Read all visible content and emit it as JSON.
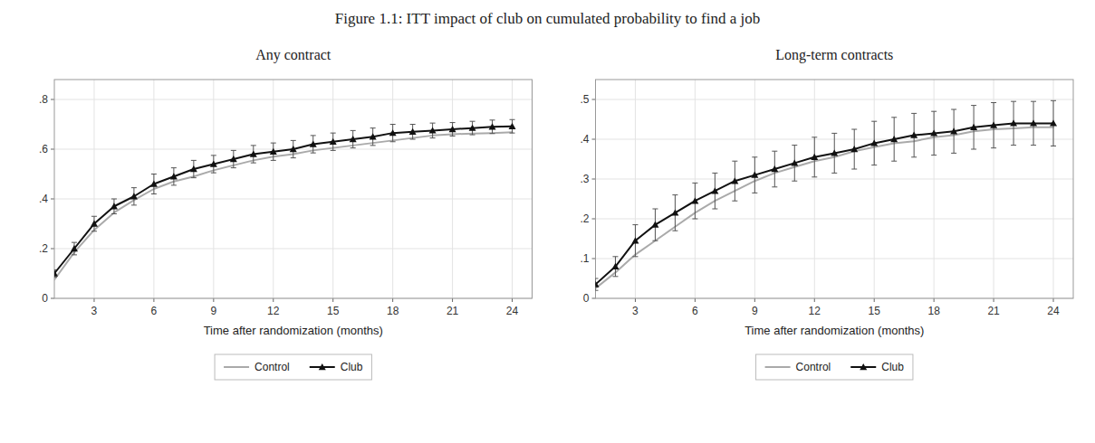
{
  "title": "Figure 1.1: ITT impact of club on cumulated probability to find a job",
  "chart_data": [
    {
      "type": "line",
      "title": "Any contract",
      "x_label": "Time after randomization (months)",
      "x": [
        1,
        2,
        3,
        4,
        5,
        6,
        7,
        8,
        9,
        10,
        11,
        12,
        13,
        14,
        15,
        16,
        17,
        18,
        19,
        20,
        21,
        22,
        23,
        24
      ],
      "series": [
        {
          "name": "Control",
          "color": "#aaaaaa",
          "values": [
            0.075,
            0.185,
            0.275,
            0.345,
            0.395,
            0.44,
            0.47,
            0.49,
            0.515,
            0.535,
            0.555,
            0.57,
            0.58,
            0.595,
            0.605,
            0.615,
            0.625,
            0.635,
            0.645,
            0.655,
            0.66,
            0.663,
            0.665,
            0.668
          ]
        },
        {
          "name": "Club",
          "color": "#111111",
          "marker": "triangle",
          "values": [
            0.1,
            0.2,
            0.3,
            0.37,
            0.41,
            0.46,
            0.49,
            0.52,
            0.54,
            0.56,
            0.58,
            0.59,
            0.6,
            0.62,
            0.63,
            0.64,
            0.65,
            0.665,
            0.67,
            0.675,
            0.68,
            0.685,
            0.69,
            0.692
          ],
          "ci_low": [
            0.085,
            0.175,
            0.27,
            0.34,
            0.375,
            0.42,
            0.455,
            0.485,
            0.505,
            0.525,
            0.545,
            0.555,
            0.565,
            0.585,
            0.595,
            0.605,
            0.615,
            0.63,
            0.64,
            0.645,
            0.653,
            0.658,
            0.663,
            0.665
          ],
          "ci_high": [
            0.115,
            0.225,
            0.33,
            0.4,
            0.445,
            0.5,
            0.525,
            0.555,
            0.575,
            0.595,
            0.615,
            0.625,
            0.635,
            0.655,
            0.665,
            0.675,
            0.685,
            0.7,
            0.7,
            0.705,
            0.707,
            0.712,
            0.717,
            0.719
          ]
        }
      ],
      "xlim": [
        1,
        25
      ],
      "xticks": [
        3,
        6,
        9,
        12,
        15,
        18,
        21,
        24
      ],
      "ylim": [
        0,
        0.88
      ],
      "yticks": [
        0,
        {
          "value": 0.2,
          "label": ".2"
        },
        {
          "value": 0.4,
          "label": ".4"
        },
        {
          "value": 0.6,
          "label": ".6"
        },
        {
          "value": 0.8,
          "label": ".8"
        }
      ],
      "grid": true,
      "legend": "bottom"
    },
    {
      "type": "line",
      "title": "Long-term contracts",
      "x_label": "Time after randomization (months)",
      "x": [
        1,
        2,
        3,
        4,
        5,
        6,
        7,
        8,
        9,
        10,
        11,
        12,
        13,
        14,
        15,
        16,
        17,
        18,
        19,
        20,
        21,
        22,
        23,
        24
      ],
      "series": [
        {
          "name": "Control",
          "color": "#aaaaaa",
          "values": [
            0.025,
            0.065,
            0.11,
            0.145,
            0.18,
            0.215,
            0.245,
            0.27,
            0.295,
            0.315,
            0.33,
            0.345,
            0.355,
            0.37,
            0.38,
            0.39,
            0.395,
            0.405,
            0.41,
            0.42,
            0.425,
            0.427,
            0.43,
            0.43
          ]
        },
        {
          "name": "Club",
          "color": "#111111",
          "marker": "triangle",
          "values": [
            0.035,
            0.08,
            0.145,
            0.185,
            0.215,
            0.245,
            0.27,
            0.295,
            0.31,
            0.325,
            0.34,
            0.355,
            0.365,
            0.375,
            0.39,
            0.4,
            0.41,
            0.415,
            0.42,
            0.43,
            0.435,
            0.44,
            0.44,
            0.44
          ],
          "ci_low": [
            0.02,
            0.055,
            0.105,
            0.145,
            0.17,
            0.2,
            0.225,
            0.245,
            0.265,
            0.28,
            0.295,
            0.305,
            0.315,
            0.325,
            0.335,
            0.345,
            0.355,
            0.36,
            0.365,
            0.375,
            0.378,
            0.385,
            0.385,
            0.383
          ],
          "ci_high": [
            0.05,
            0.105,
            0.185,
            0.225,
            0.26,
            0.29,
            0.315,
            0.345,
            0.355,
            0.37,
            0.385,
            0.405,
            0.415,
            0.425,
            0.445,
            0.455,
            0.465,
            0.47,
            0.475,
            0.485,
            0.492,
            0.495,
            0.495,
            0.497
          ]
        }
      ],
      "xlim": [
        1,
        25
      ],
      "xticks": [
        3,
        6,
        9,
        12,
        15,
        18,
        21,
        24
      ],
      "ylim": [
        0,
        0.55
      ],
      "yticks": [
        0,
        {
          "value": 0.1,
          "label": ".1"
        },
        {
          "value": 0.2,
          "label": ".2"
        },
        {
          "value": 0.3,
          "label": ".3"
        },
        {
          "value": 0.4,
          "label": ".4"
        },
        {
          "value": 0.5,
          "label": ".5"
        }
      ],
      "grid": true,
      "legend": "bottom"
    }
  ]
}
